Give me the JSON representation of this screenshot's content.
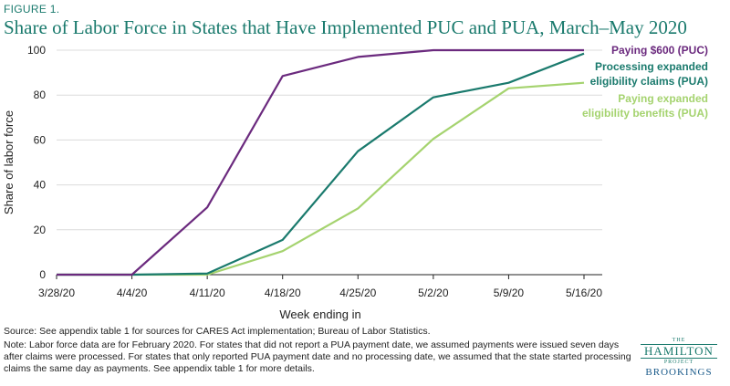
{
  "figure_label": "FIGURE 1.",
  "title": "Share of Labor Force in States that Have Implemented PUC and PUA, March–May 2020",
  "chart_data": {
    "type": "line",
    "x": [
      "3/28/20",
      "4/4/20",
      "4/11/20",
      "4/18/20",
      "4/25/20",
      "5/2/20",
      "5/9/20",
      "5/16/20"
    ],
    "xlabel": "Week ending in",
    "ylabel": "Share of labor force",
    "ylim": [
      0,
      100
    ],
    "yticks": [
      0,
      20,
      40,
      60,
      80,
      100
    ],
    "grid": "horizontal",
    "series": [
      {
        "name": "Paying $600 (PUC)",
        "color": "#6b2a7e",
        "values": [
          0,
          0,
          30,
          88.5,
          97,
          100,
          100,
          100
        ]
      },
      {
        "name": "Processing expanded eligibility claims (PUA)",
        "color": "#1a7a6d",
        "values": [
          0,
          0,
          0.5,
          15.5,
          55,
          79,
          85.5,
          98.5
        ]
      },
      {
        "name": "Paying expanded eligibility benefits (PUA)",
        "color": "#a5d36f",
        "values": [
          0,
          0,
          0,
          10.5,
          29.5,
          60.5,
          83,
          85.5
        ]
      }
    ],
    "legend_lines": [
      [
        "Paying $600 (PUC)"
      ],
      [
        "Processing expanded",
        "eligibility claims (PUA)"
      ],
      [
        "Paying expanded",
        "eligibility benefits (PUA)"
      ]
    ]
  },
  "notes": {
    "source": "Source: See appendix table 1 for sources for CARES Act implementation; Bureau of Labor Statistics.",
    "note": "Note: Labor force data are for February 2020. For states that did not report a PUA payment date, we assumed payments were issued seven days after claims were processed. For states that only reported PUA payment date and no processing date, we assumed that the state started processing claims the same day as payments. See appendix table 1 for more details."
  },
  "logo": {
    "the": "THE",
    "name": "HAMILTON",
    "project": "PROJECT",
    "brand": "BROOKINGS"
  }
}
